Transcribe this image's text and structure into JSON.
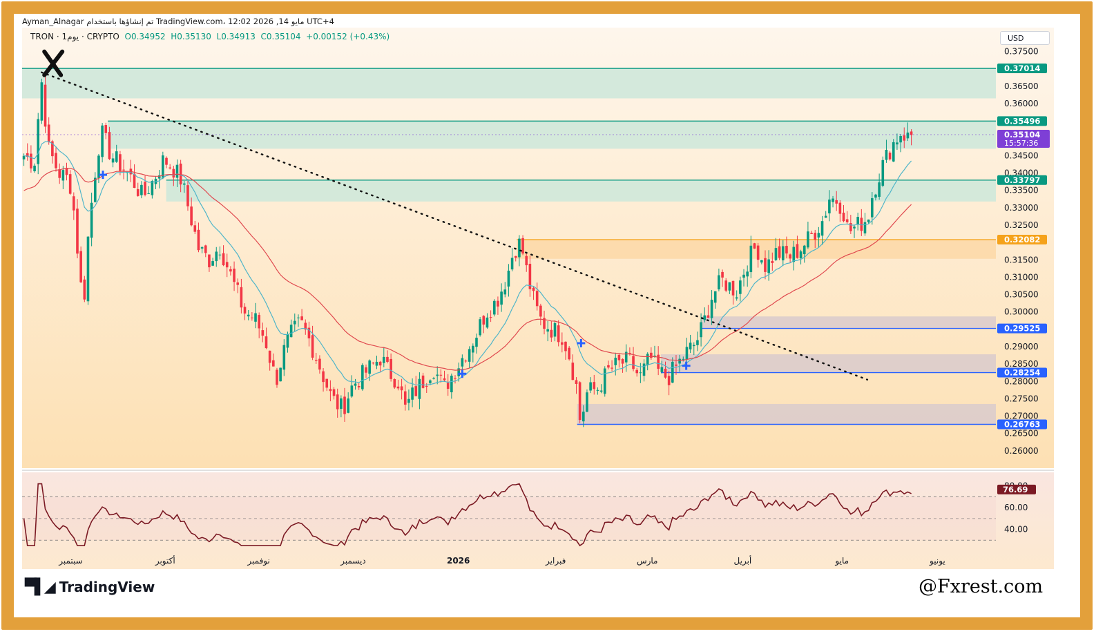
{
  "header": {
    "line1": "Ayman_Alnagar تم إنشاؤها باستخدام TradingView.com، 12:02 2026 ,14 مايو UTC+4",
    "symbol": "TRON · 1يوم · CRYPTO",
    "open": "O0.34952",
    "high": "H0.35130",
    "low": "L0.34913",
    "close": "C0.35104",
    "change": "+0.00152 (+0.43%)"
  },
  "currency": "USD",
  "footer": {
    "brand": "TradingView",
    "watermark": "@Fxrest.com"
  },
  "colors": {
    "up": "#089981",
    "down": "#f23645",
    "ema_fast": "#4fb5c9",
    "ema_slow": "#e0494f",
    "teal_zone": "#cfe8da",
    "orange_zone": "#fdd9a8",
    "gray_zone": "#dccccc",
    "rsi_line": "#7b1a24",
    "frame": "#e3a03b"
  },
  "chart_data": {
    "type": "candlestick",
    "symbol": "TRON",
    "timeframe": "1D",
    "y_axis": {
      "min": 0.255,
      "max": 0.3775,
      "ticks": [
        "0.37500",
        "0.36500",
        "0.36000",
        "0.34500",
        "0.34000",
        "0.33500",
        "0.33000",
        "0.32500",
        "0.31500",
        "0.31000",
        "0.30500",
        "0.30000",
        "0.29000",
        "0.28500",
        "0.28000",
        "0.27500",
        "0.27000",
        "0.26500",
        "0.26000"
      ]
    },
    "x_axis": {
      "labels": [
        "سبتمبر",
        "أكتوبر",
        "نوفمبر",
        "ديسمبر",
        "2026",
        "فبراير",
        "مارس",
        "أبريل",
        "مايو",
        "يونيو"
      ]
    },
    "price_levels": [
      {
        "value": 0.37014,
        "label": "0.37014",
        "color": "#089981"
      },
      {
        "value": 0.35496,
        "label": "0.35496",
        "color": "#089981"
      },
      {
        "value": 0.33797,
        "label": "0.33797",
        "color": "#089981"
      },
      {
        "value": 0.32082,
        "label": "0.32082",
        "color": "#f5a21b"
      },
      {
        "value": 0.29525,
        "label": "0.29525",
        "color": "#2962ff"
      },
      {
        "value": 0.28254,
        "label": "0.28254",
        "color": "#2962ff"
      },
      {
        "value": 0.26763,
        "label": "0.26763",
        "color": "#2962ff"
      }
    ],
    "current_price": {
      "value": 0.35104,
      "label": "0.35104",
      "countdown": "15:57:36",
      "color": "#7e3fd6"
    },
    "zones": [
      {
        "from": 0.37014,
        "to": 0.3615,
        "color": "teal"
      },
      {
        "from": 0.35496,
        "to": 0.347,
        "color": "teal"
      },
      {
        "from": 0.33797,
        "to": 0.3318,
        "color": "teal"
      },
      {
        "from": 0.32082,
        "to": 0.3153,
        "color": "orange"
      },
      {
        "from": 0.2987,
        "to": 0.29525,
        "color": "gray"
      },
      {
        "from": 0.2878,
        "to": 0.28254,
        "color": "gray"
      },
      {
        "from": 0.2735,
        "to": 0.26763,
        "color": "gray"
      }
    ],
    "trendline": {
      "from": {
        "t": 0.02,
        "p": 0.369
      },
      "to": {
        "t": 0.868,
        "p": 0.2805
      },
      "style": "dotted"
    },
    "rsi": {
      "value_label": "76.69",
      "ticks": [
        "80.00",
        "60.00",
        "40.00"
      ],
      "levels": [
        70,
        50,
        30
      ]
    }
  }
}
